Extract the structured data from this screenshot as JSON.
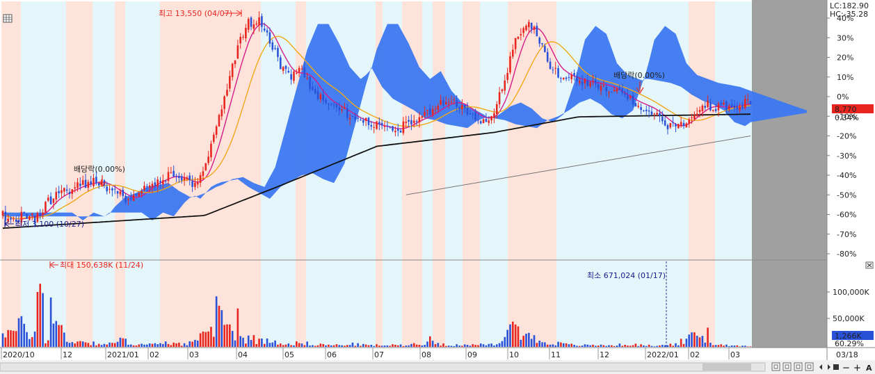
{
  "colors": {
    "up": "#e8251f",
    "down": "#2a52d9",
    "cloud": "#3c78f0",
    "ma_short": "#d81b8a",
    "ma_mid": "#f0a818",
    "ma_long": "#111111",
    "ma_xlong": "#777777",
    "band_rise": "#fde3da",
    "band_fall": "#e5f6fb",
    "pad": "#a0a0a0",
    "price_tag": "#e8251f",
    "volume_tag": "#2a52d9"
  },
  "header": {
    "lc": "LC:182.90",
    "hc": "HC:-35.28"
  },
  "price_tag": {
    "value": "8,770",
    "change": "0.34%"
  },
  "volume_tag": {
    "value": "1,266K",
    "ratio": "60.29%"
  },
  "annotations": {
    "high": "최고 13,550 (04/07)",
    "low": "최저 3,100 (10/27)",
    "dividend_1": "배당락(0.00%)",
    "dividend_2": "배당락(0.00%)",
    "vol_max": "최대 150,638K (11/24)",
    "vol_min": "최소 671,024 (01/17)"
  },
  "controls": {
    "zoom_out": "－",
    "zoom_in": "＋",
    "toggle_a": "A"
  },
  "chart_data": {
    "type": "candlestick",
    "price_axis": {
      "unit": "% change",
      "ylim": [
        -85,
        50
      ],
      "ticks": [
        "40%",
        "30%",
        "20%",
        "10%",
        "0%",
        "-10%",
        "-20%",
        "-30%",
        "-40%",
        "-50%",
        "-60%",
        "-70%",
        "-80%"
      ]
    },
    "volume_axis": {
      "ticks": [
        "100,000K",
        "50,000K"
      ]
    },
    "x_axis": {
      "labels": [
        "2020/10",
        "12",
        "2021/01",
        "02",
        "03",
        "04",
        "05",
        "06",
        "07",
        "08",
        "09",
        "10",
        "11",
        "12",
        "2022/01",
        "02",
        "03",
        "03/18"
      ]
    },
    "price_path": [
      [
        0,
        -60
      ],
      [
        4,
        -64
      ],
      [
        8,
        -60
      ],
      [
        12,
        -62
      ],
      [
        16,
        -55
      ],
      [
        20,
        -50
      ],
      [
        24,
        -48
      ],
      [
        28,
        -45
      ],
      [
        32,
        -44
      ],
      [
        36,
        -43
      ],
      [
        40,
        -47
      ],
      [
        44,
        -50
      ],
      [
        48,
        -53
      ],
      [
        52,
        -47
      ],
      [
        56,
        -44
      ],
      [
        60,
        -41
      ],
      [
        64,
        -40
      ],
      [
        68,
        -43
      ],
      [
        72,
        -45
      ],
      [
        76,
        -35
      ],
      [
        80,
        -15
      ],
      [
        84,
        5
      ],
      [
        88,
        25
      ],
      [
        92,
        38
      ],
      [
        96,
        38
      ],
      [
        100,
        28
      ],
      [
        104,
        16
      ],
      [
        108,
        10
      ],
      [
        112,
        14
      ],
      [
        116,
        4
      ],
      [
        120,
        -2
      ],
      [
        124,
        -5
      ],
      [
        128,
        -8
      ],
      [
        132,
        -12
      ],
      [
        136,
        -13
      ],
      [
        140,
        -15
      ],
      [
        144,
        -16
      ],
      [
        148,
        -17
      ],
      [
        152,
        -13
      ],
      [
        156,
        -11
      ],
      [
        160,
        -8
      ],
      [
        164,
        -4
      ],
      [
        168,
        -2
      ],
      [
        172,
        -5
      ],
      [
        176,
        -10
      ],
      [
        180,
        -12
      ],
      [
        184,
        -8
      ],
      [
        188,
        8
      ],
      [
        192,
        30
      ],
      [
        196,
        37
      ],
      [
        200,
        33
      ],
      [
        204,
        18
      ],
      [
        208,
        12
      ],
      [
        212,
        10
      ],
      [
        216,
        8
      ],
      [
        220,
        7
      ],
      [
        224,
        6
      ],
      [
        228,
        4
      ],
      [
        232,
        0
      ],
      [
        236,
        -3
      ],
      [
        240,
        -5
      ],
      [
        244,
        -8
      ],
      [
        248,
        -14
      ],
      [
        252,
        -16
      ],
      [
        256,
        -12
      ],
      [
        260,
        -7
      ],
      [
        264,
        -4
      ],
      [
        268,
        -6
      ],
      [
        272,
        -5
      ],
      [
        276,
        -4
      ],
      [
        280,
        -3
      ]
    ],
    "volume_path": [
      [
        0,
        35
      ],
      [
        4,
        25
      ],
      [
        8,
        40
      ],
      [
        12,
        20
      ],
      [
        16,
        15
      ],
      [
        20,
        48
      ],
      [
        24,
        12
      ],
      [
        28,
        10
      ],
      [
        32,
        8
      ],
      [
        36,
        6
      ],
      [
        40,
        5
      ],
      [
        44,
        12
      ],
      [
        48,
        7
      ],
      [
        52,
        5
      ],
      [
        56,
        4
      ],
      [
        60,
        6
      ],
      [
        64,
        8
      ],
      [
        68,
        5
      ],
      [
        72,
        10
      ],
      [
        76,
        20
      ],
      [
        80,
        55
      ],
      [
        84,
        38
      ],
      [
        88,
        14
      ],
      [
        92,
        18
      ],
      [
        96,
        10
      ],
      [
        100,
        12
      ],
      [
        104,
        8
      ],
      [
        108,
        6
      ],
      [
        112,
        7
      ],
      [
        116,
        5
      ],
      [
        120,
        4
      ],
      [
        124,
        3
      ],
      [
        128,
        4
      ],
      [
        132,
        5
      ],
      [
        136,
        3
      ],
      [
        140,
        3
      ],
      [
        144,
        3
      ],
      [
        148,
        3
      ],
      [
        152,
        4
      ],
      [
        156,
        6
      ],
      [
        160,
        12
      ],
      [
        164,
        5
      ],
      [
        168,
        4
      ],
      [
        172,
        3
      ],
      [
        176,
        3
      ],
      [
        180,
        4
      ],
      [
        184,
        4
      ],
      [
        188,
        20
      ],
      [
        192,
        35
      ],
      [
        196,
        22
      ],
      [
        200,
        12
      ],
      [
        204,
        8
      ],
      [
        208,
        6
      ],
      [
        212,
        4
      ],
      [
        216,
        3
      ],
      [
        220,
        3
      ],
      [
        224,
        3
      ],
      [
        228,
        3
      ],
      [
        232,
        4
      ],
      [
        236,
        4
      ],
      [
        240,
        3
      ],
      [
        244,
        2
      ],
      [
        248,
        3
      ],
      [
        252,
        6
      ],
      [
        256,
        12
      ],
      [
        260,
        22
      ],
      [
        264,
        8
      ],
      [
        268,
        4
      ],
      [
        272,
        3
      ],
      [
        276,
        2
      ],
      [
        280,
        2
      ]
    ]
  }
}
